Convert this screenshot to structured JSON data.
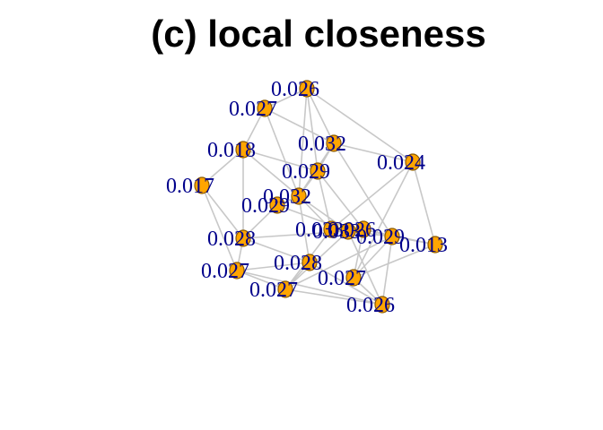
{
  "title": "(c) local closeness",
  "colors": {
    "node_fill": "#ffa500",
    "label": "#00008b",
    "edge": "#c8c8c8"
  },
  "nodes": [
    {
      "id": "n1",
      "label": "0.026"
    },
    {
      "id": "n2",
      "label": "0.027"
    },
    {
      "id": "n3",
      "label": "0.018"
    },
    {
      "id": "n4",
      "label": "0.032"
    },
    {
      "id": "n5",
      "label": "0.024"
    },
    {
      "id": "n6",
      "label": "0.029"
    },
    {
      "id": "n7",
      "label": "0.017"
    },
    {
      "id": "n8",
      "label": "0.032"
    },
    {
      "id": "n9",
      "label": "0.029"
    },
    {
      "id": "n10",
      "label": "0.028"
    },
    {
      "id": "n11",
      "label": "0.033"
    },
    {
      "id": "n12",
      "label": "0.026"
    },
    {
      "id": "n13",
      "label": "0.013"
    },
    {
      "id": "n14",
      "label": "0.028"
    },
    {
      "id": "n15",
      "label": "0.033"
    },
    {
      "id": "n16",
      "label": "0.027"
    },
    {
      "id": "n17",
      "label": "0.029"
    },
    {
      "id": "n18",
      "label": "0.027"
    },
    {
      "id": "n19",
      "label": "0.027"
    },
    {
      "id": "n20",
      "label": "0.026"
    }
  ],
  "edges": [
    [
      "n1",
      "n2"
    ],
    [
      "n1",
      "n4"
    ],
    [
      "n1",
      "n5"
    ],
    [
      "n1",
      "n8"
    ],
    [
      "n1",
      "n6"
    ],
    [
      "n2",
      "n3"
    ],
    [
      "n2",
      "n8"
    ],
    [
      "n2",
      "n4"
    ],
    [
      "n3",
      "n7"
    ],
    [
      "n3",
      "n8"
    ],
    [
      "n3",
      "n6"
    ],
    [
      "n3",
      "n10"
    ],
    [
      "n4",
      "n6"
    ],
    [
      "n4",
      "n8"
    ],
    [
      "n4",
      "n5"
    ],
    [
      "n4",
      "n17"
    ],
    [
      "n5",
      "n11"
    ],
    [
      "n5",
      "n13"
    ],
    [
      "n5",
      "n18"
    ],
    [
      "n6",
      "n8"
    ],
    [
      "n6",
      "n11"
    ],
    [
      "n6",
      "n12"
    ],
    [
      "n7",
      "n16"
    ],
    [
      "n7",
      "n10"
    ],
    [
      "n8",
      "n9"
    ],
    [
      "n8",
      "n11"
    ],
    [
      "n8",
      "n15"
    ],
    [
      "n8",
      "n14"
    ],
    [
      "n9",
      "n10"
    ],
    [
      "n9",
      "n15"
    ],
    [
      "n10",
      "n16"
    ],
    [
      "n10",
      "n15"
    ],
    [
      "n10",
      "n14"
    ],
    [
      "n11",
      "n12"
    ],
    [
      "n11",
      "n15"
    ],
    [
      "n11",
      "n17"
    ],
    [
      "n11",
      "n19"
    ],
    [
      "n12",
      "n13"
    ],
    [
      "n12",
      "n17"
    ],
    [
      "n12",
      "n18"
    ],
    [
      "n13",
      "n18"
    ],
    [
      "n13",
      "n17"
    ],
    [
      "n14",
      "n19"
    ],
    [
      "n14",
      "n16"
    ],
    [
      "n14",
      "n20"
    ],
    [
      "n15",
      "n17"
    ],
    [
      "n15",
      "n19"
    ],
    [
      "n15",
      "n20"
    ],
    [
      "n16",
      "n19"
    ],
    [
      "n16",
      "n20"
    ],
    [
      "n17",
      "n18"
    ],
    [
      "n17",
      "n20"
    ],
    [
      "n17",
      "n19"
    ],
    [
      "n18",
      "n20"
    ],
    [
      "n19",
      "n20"
    ]
  ]
}
